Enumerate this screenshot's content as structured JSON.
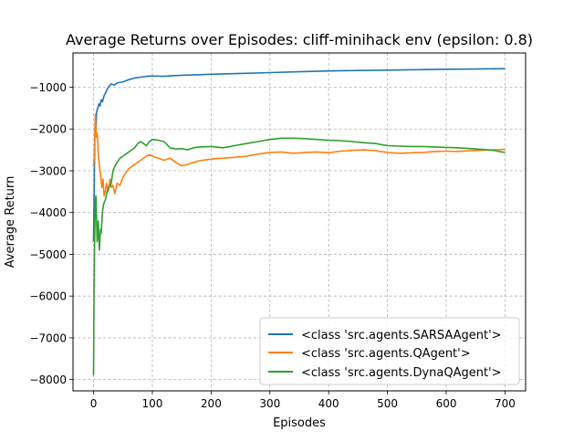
{
  "chart_data": {
    "type": "line",
    "title": "Average Returns over Episodes: cliff-minihack env (epsilon: 0.8)",
    "xlabel": "Episodes",
    "ylabel": "Average Return",
    "xlim": [
      -35,
      735
    ],
    "ylim": [
      -8270,
      -180
    ],
    "xticks": [
      0,
      100,
      200,
      300,
      400,
      500,
      600,
      700
    ],
    "yticks": [
      -8000,
      -7000,
      -6000,
      -5000,
      -4000,
      -3000,
      -2000,
      -1000
    ],
    "grid": true,
    "grid_style": "dashed",
    "legend_position": "lower-right",
    "series": [
      {
        "name": "<class 'src.agents.SARSAAgent'>",
        "color": "#1f77b4",
        "points": [
          [
            0,
            -4700
          ],
          [
            1,
            -3500
          ],
          [
            2,
            -2300
          ],
          [
            3,
            -1700
          ],
          [
            4,
            -2100
          ],
          [
            5,
            -1600
          ],
          [
            7,
            -1500
          ],
          [
            9,
            -1400
          ],
          [
            11,
            -1450
          ],
          [
            13,
            -1300
          ],
          [
            15,
            -1350
          ],
          [
            18,
            -1200
          ],
          [
            20,
            -1150
          ],
          [
            23,
            -1050
          ],
          [
            26,
            -980
          ],
          [
            30,
            -920
          ],
          [
            35,
            -950
          ],
          [
            40,
            -900
          ],
          [
            50,
            -870
          ],
          [
            60,
            -820
          ],
          [
            70,
            -780
          ],
          [
            80,
            -760
          ],
          [
            90,
            -740
          ],
          [
            100,
            -730
          ],
          [
            120,
            -740
          ],
          [
            140,
            -720
          ],
          [
            160,
            -710
          ],
          [
            180,
            -700
          ],
          [
            200,
            -690
          ],
          [
            250,
            -670
          ],
          [
            300,
            -650
          ],
          [
            350,
            -630
          ],
          [
            400,
            -610
          ],
          [
            450,
            -600
          ],
          [
            500,
            -590
          ],
          [
            550,
            -580
          ],
          [
            600,
            -570
          ],
          [
            650,
            -565
          ],
          [
            700,
            -555
          ]
        ]
      },
      {
        "name": "<class 'src.agents.QAgent'>",
        "color": "#ff7f0e",
        "points": [
          [
            0,
            -2900
          ],
          [
            1,
            -2700
          ],
          [
            2,
            -2200
          ],
          [
            3,
            -1650
          ],
          [
            4,
            -2000
          ],
          [
            5,
            -2200
          ],
          [
            6,
            -2100
          ],
          [
            7,
            -2300
          ],
          [
            8,
            -2600
          ],
          [
            10,
            -2900
          ],
          [
            12,
            -3100
          ],
          [
            14,
            -3400
          ],
          [
            16,
            -3200
          ],
          [
            18,
            -3600
          ],
          [
            20,
            -3500
          ],
          [
            22,
            -3300
          ],
          [
            25,
            -3500
          ],
          [
            28,
            -3200
          ],
          [
            30,
            -3400
          ],
          [
            33,
            -3350
          ],
          [
            36,
            -3550
          ],
          [
            40,
            -3300
          ],
          [
            45,
            -3350
          ],
          [
            50,
            -3150
          ],
          [
            55,
            -3050
          ],
          [
            60,
            -2950
          ],
          [
            65,
            -2900
          ],
          [
            70,
            -2850
          ],
          [
            75,
            -2800
          ],
          [
            80,
            -2750
          ],
          [
            85,
            -2700
          ],
          [
            90,
            -2650
          ],
          [
            95,
            -2620
          ],
          [
            100,
            -2650
          ],
          [
            110,
            -2700
          ],
          [
            120,
            -2750
          ],
          [
            130,
            -2700
          ],
          [
            140,
            -2800
          ],
          [
            150,
            -2880
          ],
          [
            160,
            -2850
          ],
          [
            170,
            -2800
          ],
          [
            180,
            -2760
          ],
          [
            200,
            -2720
          ],
          [
            220,
            -2700
          ],
          [
            240,
            -2680
          ],
          [
            260,
            -2650
          ],
          [
            280,
            -2600
          ],
          [
            300,
            -2560
          ],
          [
            320,
            -2550
          ],
          [
            340,
            -2580
          ],
          [
            360,
            -2560
          ],
          [
            380,
            -2550
          ],
          [
            400,
            -2570
          ],
          [
            420,
            -2530
          ],
          [
            440,
            -2510
          ],
          [
            460,
            -2500
          ],
          [
            480,
            -2520
          ],
          [
            500,
            -2560
          ],
          [
            520,
            -2580
          ],
          [
            540,
            -2570
          ],
          [
            560,
            -2560
          ],
          [
            580,
            -2540
          ],
          [
            600,
            -2530
          ],
          [
            620,
            -2540
          ],
          [
            640,
            -2520
          ],
          [
            660,
            -2510
          ],
          [
            680,
            -2500
          ],
          [
            700,
            -2490
          ]
        ]
      },
      {
        "name": "<class 'src.agents.DynaQAgent'>",
        "color": "#2ca02c",
        "points": [
          [
            0,
            -7900
          ],
          [
            1,
            -5500
          ],
          [
            2,
            -4500
          ],
          [
            3,
            -3700
          ],
          [
            4,
            -3600
          ],
          [
            5,
            -4100
          ],
          [
            6,
            -4700
          ],
          [
            7,
            -4500
          ],
          [
            8,
            -4200
          ],
          [
            9,
            -4600
          ],
          [
            10,
            -4900
          ],
          [
            11,
            -4600
          ],
          [
            12,
            -4400
          ],
          [
            13,
            -4500
          ],
          [
            15,
            -4000
          ],
          [
            17,
            -3800
          ],
          [
            20,
            -3700
          ],
          [
            23,
            -3500
          ],
          [
            26,
            -3400
          ],
          [
            30,
            -3300
          ],
          [
            33,
            -3000
          ],
          [
            36,
            -2900
          ],
          [
            40,
            -2800
          ],
          [
            45,
            -2700
          ],
          [
            50,
            -2650
          ],
          [
            55,
            -2600
          ],
          [
            60,
            -2550
          ],
          [
            65,
            -2500
          ],
          [
            70,
            -2450
          ],
          [
            75,
            -2350
          ],
          [
            80,
            -2300
          ],
          [
            85,
            -2350
          ],
          [
            90,
            -2400
          ],
          [
            95,
            -2300
          ],
          [
            100,
            -2250
          ],
          [
            110,
            -2270
          ],
          [
            120,
            -2300
          ],
          [
            130,
            -2450
          ],
          [
            140,
            -2480
          ],
          [
            150,
            -2470
          ],
          [
            160,
            -2500
          ],
          [
            170,
            -2450
          ],
          [
            180,
            -2430
          ],
          [
            200,
            -2420
          ],
          [
            220,
            -2450
          ],
          [
            240,
            -2400
          ],
          [
            260,
            -2350
          ],
          [
            280,
            -2300
          ],
          [
            300,
            -2250
          ],
          [
            320,
            -2220
          ],
          [
            340,
            -2220
          ],
          [
            360,
            -2230
          ],
          [
            380,
            -2250
          ],
          [
            400,
            -2270
          ],
          [
            420,
            -2280
          ],
          [
            440,
            -2300
          ],
          [
            460,
            -2330
          ],
          [
            480,
            -2350
          ],
          [
            500,
            -2400
          ],
          [
            520,
            -2410
          ],
          [
            540,
            -2420
          ],
          [
            560,
            -2420
          ],
          [
            580,
            -2430
          ],
          [
            600,
            -2440
          ],
          [
            620,
            -2450
          ],
          [
            640,
            -2470
          ],
          [
            660,
            -2490
          ],
          [
            680,
            -2510
          ],
          [
            690,
            -2540
          ],
          [
            700,
            -2560
          ]
        ]
      }
    ]
  }
}
